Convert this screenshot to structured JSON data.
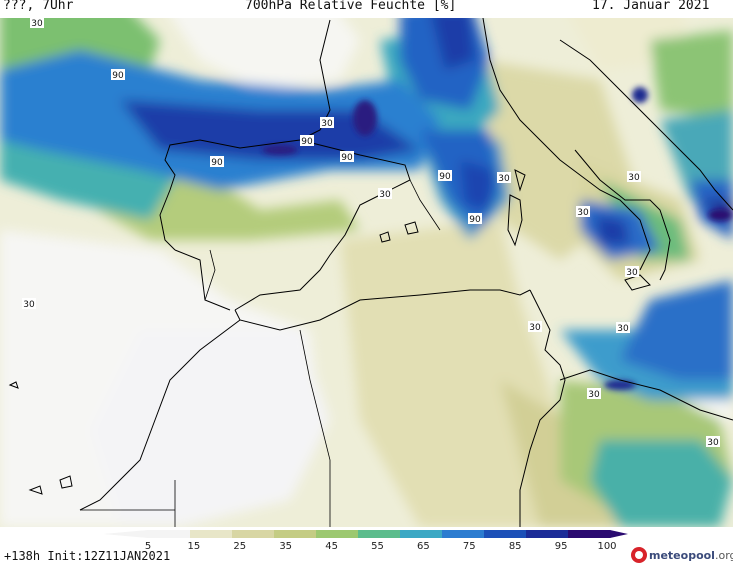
{
  "header": {
    "left": "???, 7Uhr",
    "title": "700hPa Relative Feuchte [%]",
    "date": "17. Januar 2021"
  },
  "footer": {
    "run_info": "+138h Init:12Z11JAN2021",
    "logo_brand": "meteopool",
    "logo_tld": ".org"
  },
  "legend": {
    "ticks": [
      "5",
      "15",
      "25",
      "35",
      "45",
      "55",
      "65",
      "75",
      "85",
      "95",
      "100"
    ],
    "colors": [
      "#f4f4f4",
      "#e8e6c8",
      "#d8d6a4",
      "#c4cc84",
      "#9cc870",
      "#5cbc8c",
      "#3ca8c4",
      "#2c7cd0",
      "#1c50b8",
      "#1c2c98",
      "#2a0a70"
    ]
  },
  "map_labels": [
    {
      "text": "30"
    },
    {
      "text": "90"
    },
    {
      "text": "30"
    },
    {
      "text": "90"
    },
    {
      "text": "90"
    },
    {
      "text": "90"
    },
    {
      "text": "30"
    },
    {
      "text": "90"
    },
    {
      "text": "30"
    },
    {
      "text": "90"
    },
    {
      "text": "30"
    },
    {
      "text": "30"
    },
    {
      "text": "30"
    },
    {
      "text": "30"
    },
    {
      "text": "30"
    },
    {
      "text": "30"
    },
    {
      "text": "30"
    },
    {
      "text": "30"
    }
  ]
}
